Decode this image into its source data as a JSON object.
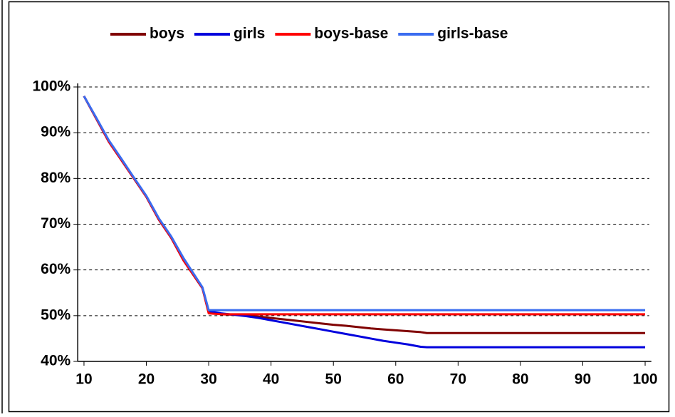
{
  "chart_data": {
    "type": "line",
    "x": [
      10,
      12,
      14,
      16,
      18,
      20,
      22,
      24,
      26,
      28,
      29,
      30,
      32,
      34,
      36,
      38,
      40,
      42,
      44,
      46,
      48,
      50,
      52,
      54,
      56,
      58,
      60,
      62,
      64,
      65,
      70,
      80,
      90,
      100
    ],
    "series": [
      {
        "name": "boys",
        "color": "#800000",
        "values": [
          98,
          93,
          88,
          84,
          80,
          76,
          71,
          67,
          62,
          58,
          56,
          51,
          50.3,
          50.2,
          50.1,
          49.8,
          49.5,
          49.2,
          48.9,
          48.6,
          48.3,
          48,
          47.8,
          47.5,
          47.2,
          47,
          46.8,
          46.6,
          46.4,
          46.2,
          46.2,
          46.2,
          46.2,
          46.2
        ]
      },
      {
        "name": "girls",
        "color": "#0000dd",
        "values": [
          98,
          93,
          88,
          84,
          80,
          76,
          71,
          67,
          62,
          58,
          56,
          51,
          50.5,
          50.2,
          49.9,
          49.5,
          49,
          48.5,
          48,
          47.5,
          47,
          46.5,
          46,
          45.5,
          45,
          44.5,
          44.1,
          43.7,
          43.2,
          43.1,
          43.1,
          43.1,
          43.1,
          43.1
        ]
      },
      {
        "name": "boys-base",
        "color": "#ff0000",
        "values": [
          98,
          93,
          88,
          84,
          80,
          76,
          71,
          67,
          62,
          58,
          56,
          50.5,
          50.3,
          50.3,
          50.3,
          50.3,
          50.3,
          50.3,
          50.3,
          50.3,
          50.3,
          50.3,
          50.3,
          50.3,
          50.3,
          50.3,
          50.3,
          50.3,
          50.3,
          50.3,
          50.3,
          50.3,
          50.3,
          50.3
        ]
      },
      {
        "name": "girls-base",
        "color": "#3a6cf0",
        "values": [
          98,
          93.2,
          88.3,
          84.3,
          80.2,
          76.2,
          71.3,
          67.3,
          62.5,
          58.3,
          56.2,
          51.2,
          51.2,
          51.2,
          51.2,
          51.2,
          51.2,
          51.2,
          51.2,
          51.2,
          51.2,
          51.2,
          51.2,
          51.2,
          51.2,
          51.2,
          51.2,
          51.2,
          51.2,
          51.2,
          51.2,
          51.2,
          51.2,
          51.2
        ]
      }
    ],
    "xlim": [
      9,
      101
    ],
    "xticks": [
      10,
      20,
      30,
      40,
      50,
      60,
      70,
      80,
      90,
      100
    ],
    "ylim": [
      40,
      100
    ],
    "yticks": [
      {
        "value": 40,
        "label": "40%"
      },
      {
        "value": 50,
        "label": "50%"
      },
      {
        "value": 60,
        "label": "60%"
      },
      {
        "value": 70,
        "label": "70%"
      },
      {
        "value": 80,
        "label": "80%"
      },
      {
        "value": 90,
        "label": "90%"
      },
      {
        "value": 100,
        "label": "100%"
      }
    ],
    "grid": true,
    "legend": "top"
  }
}
